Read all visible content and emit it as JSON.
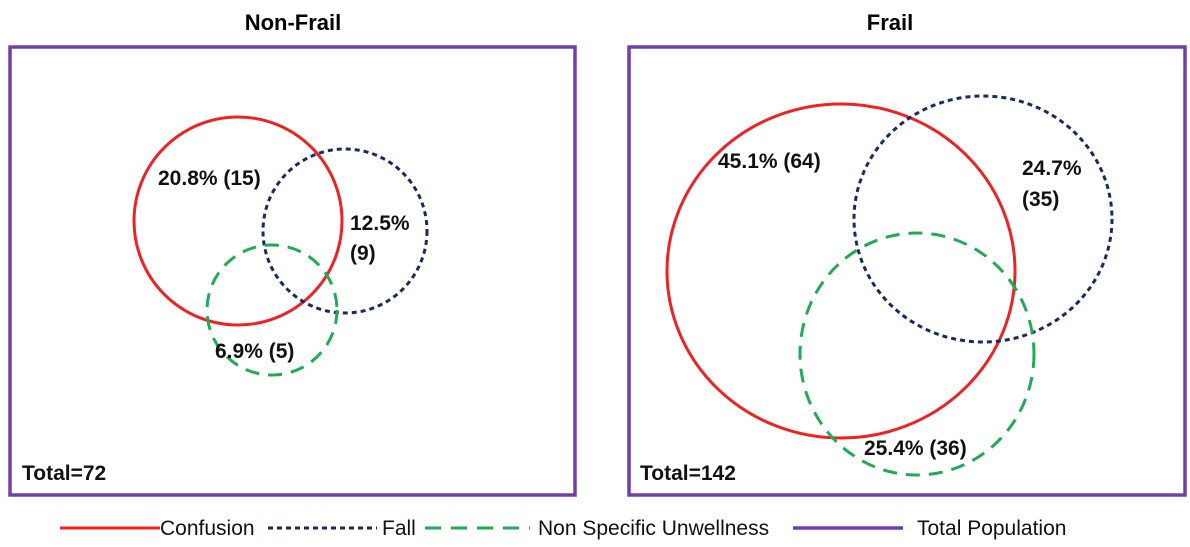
{
  "colors": {
    "confusion": "#ee2222",
    "fall": "#1b2a5e",
    "non_specific": "#22aa55",
    "total": "#7040a8"
  },
  "panels": [
    {
      "title": "Non-Frail",
      "total": "Total=72",
      "labels": {
        "confusion": "20.8% (15)",
        "fall_1": "12.5%",
        "fall_2": "(9)",
        "non_specific": "6.9% (5)"
      }
    },
    {
      "title": "Frail",
      "total": "Total=142",
      "labels": {
        "confusion": "45.1% (64)",
        "fall_1": "24.7%",
        "fall_2": "(35)",
        "non_specific": "25.4% (36)"
      }
    }
  ],
  "legend": {
    "confusion": "Confusion",
    "fall": "Fall",
    "non_specific": "Non Specific Unwellness",
    "total": "Total Population"
  }
}
